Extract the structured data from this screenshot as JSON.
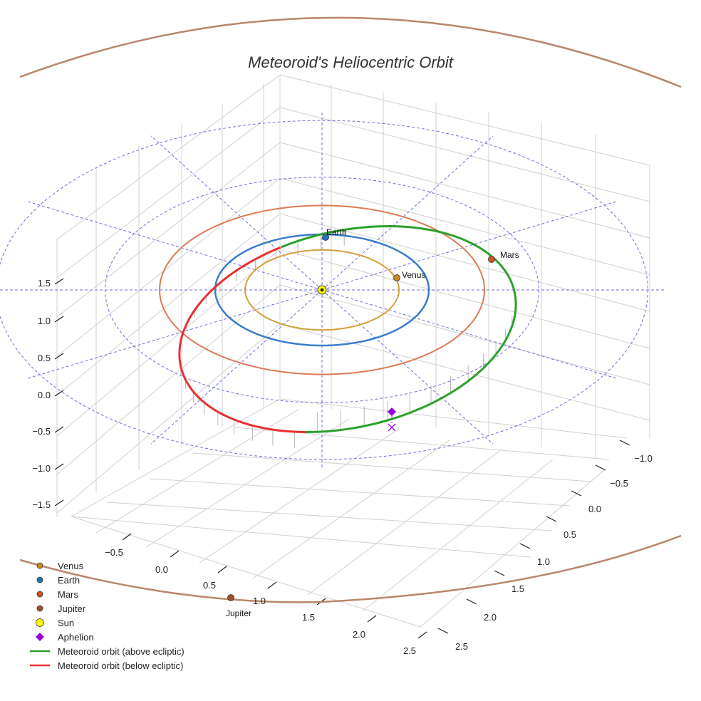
{
  "chart_data": {
    "type": "scatter",
    "projection": "3d",
    "title": "Meteoroid's Heliocentric Orbit",
    "xlabel": "",
    "ylabel": "",
    "zlabel": "",
    "xlim": [
      -0.8,
      2.7
    ],
    "ylim": [
      -1.1,
      2.6
    ],
    "zlim": [
      -1.7,
      1.8
    ],
    "x_ticks": [
      "−0.5",
      "0.0",
      "0.5",
      "1.0",
      "1.5",
      "2.0",
      "2.5"
    ],
    "y_ticks": [
      "−1.0",
      "−0.5",
      "0.0",
      "0.5",
      "1.0",
      "1.5",
      "2.0",
      "2.5"
    ],
    "z_ticks": [
      "−1.5",
      "−1.0",
      "−0.5",
      "0.0",
      "0.5",
      "1.0",
      "1.5"
    ],
    "planets": [
      {
        "name": "Venus",
        "a_au": 0.72,
        "color": "#d4a03c",
        "marker_color": "#c88a1e",
        "show_label": true
      },
      {
        "name": "Earth",
        "a_au": 1.0,
        "color": "#3a7ccc",
        "marker_color": "#1f77b4",
        "show_label": true
      },
      {
        "name": "Mars",
        "a_au": 1.52,
        "color": "#dd7a55",
        "marker_color": "#cc5522",
        "show_label": true
      },
      {
        "name": "Jupiter",
        "a_au": 5.2,
        "color": "#b8866a",
        "marker_color": "#a0522d",
        "show_label": true
      }
    ],
    "sun": {
      "name": "Sun",
      "color": "#ffff00",
      "x": 0,
      "y": 0,
      "z": 0
    },
    "meteoroid": {
      "perihelion_au": 0.98,
      "aphelion_au": 2.2,
      "above_color": "#2ca02c",
      "below_color": "#e83030"
    },
    "aphelion_marker": {
      "name": "Aphelion",
      "color": "#9400d3"
    },
    "legend": {
      "position": "bottom-left",
      "entries": [
        {
          "label": "Venus",
          "marker": "circle",
          "color": "#c88a1e"
        },
        {
          "label": "Earth",
          "marker": "circle",
          "color": "#1f77b4"
        },
        {
          "label": "Mars",
          "marker": "circle",
          "color": "#cc5522"
        },
        {
          "label": "Jupiter",
          "marker": "circle",
          "color": "#a0522d"
        },
        {
          "label": "Sun",
          "marker": "sun",
          "color": "#ffff00"
        },
        {
          "label": "Aphelion",
          "marker": "diamond",
          "color": "#9400d3"
        },
        {
          "label": "Meteoroid orbit (above ecliptic)",
          "marker": "line",
          "color": "#2ca02c"
        },
        {
          "label": "Meteoroid orbit (below ecliptic)",
          "marker": "line",
          "color": "#e83030"
        }
      ]
    }
  }
}
